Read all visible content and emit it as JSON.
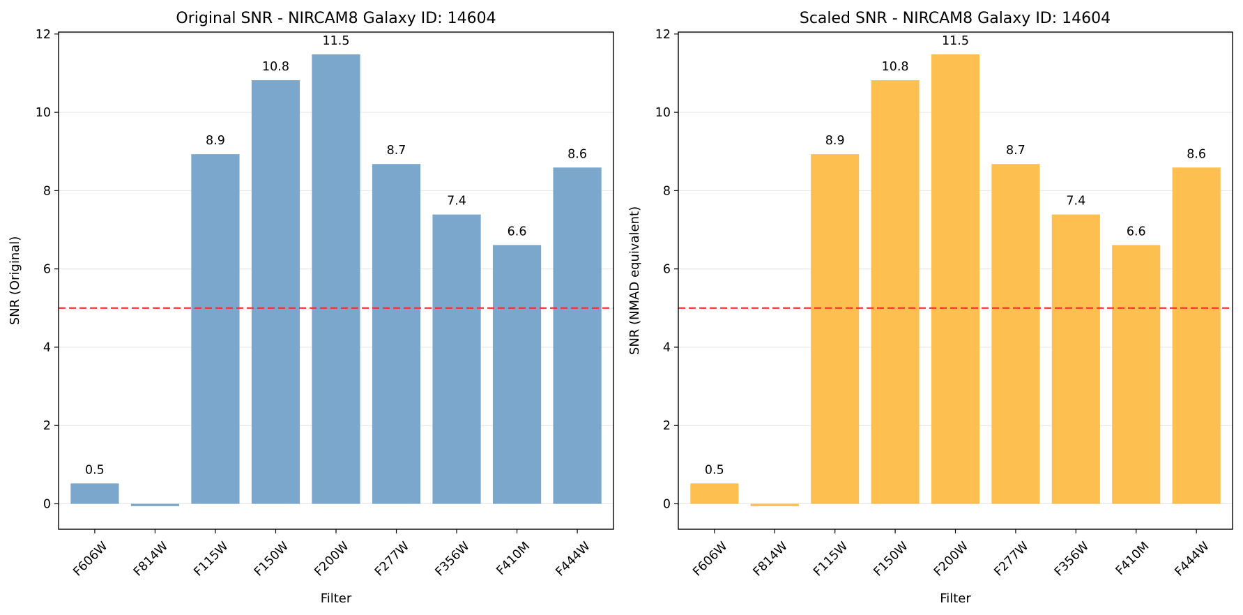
{
  "chart_data": [
    {
      "type": "bar",
      "title": "Original SNR - NIRCAM8 Galaxy ID: 14604",
      "xlabel": "Filter",
      "ylabel": "SNR (Original)",
      "categories": [
        "F606W",
        "F814W",
        "F115W",
        "F150W",
        "F200W",
        "F277W",
        "F356W",
        "F410M",
        "F444W"
      ],
      "values": [
        0.52,
        -0.06,
        8.93,
        10.82,
        11.48,
        8.68,
        7.39,
        6.61,
        8.59
      ],
      "data_labels": [
        "0.5",
        "",
        "8.9",
        "10.8",
        "11.5",
        "8.7",
        "7.4",
        "6.6",
        "8.6"
      ],
      "bar_color": "#7ba7cc",
      "ylim": [
        -0.65,
        12.05
      ],
      "yticks": [
        0,
        2,
        4,
        6,
        8,
        10,
        12
      ],
      "reference_line": {
        "y": 5,
        "color": "#ff2a2a",
        "style": "dashed"
      },
      "grid": "horizontal"
    },
    {
      "type": "bar",
      "title": "Scaled SNR - NIRCAM8 Galaxy ID: 14604",
      "xlabel": "Filter",
      "ylabel": "SNR (NMAD equivalent)",
      "categories": [
        "F606W",
        "F814W",
        "F115W",
        "F150W",
        "F200W",
        "F277W",
        "F356W",
        "F410M",
        "F444W"
      ],
      "values": [
        0.52,
        -0.06,
        8.93,
        10.82,
        11.48,
        8.68,
        7.39,
        6.61,
        8.59
      ],
      "data_labels": [
        "0.5",
        "",
        "8.9",
        "10.8",
        "11.5",
        "8.7",
        "7.4",
        "6.6",
        "8.6"
      ],
      "bar_color": "#fdbf4f",
      "ylim": [
        -0.65,
        12.05
      ],
      "yticks": [
        0,
        2,
        4,
        6,
        8,
        10,
        12
      ],
      "reference_line": {
        "y": 5,
        "color": "#ff2a2a",
        "style": "dashed"
      },
      "grid": "horizontal"
    }
  ]
}
